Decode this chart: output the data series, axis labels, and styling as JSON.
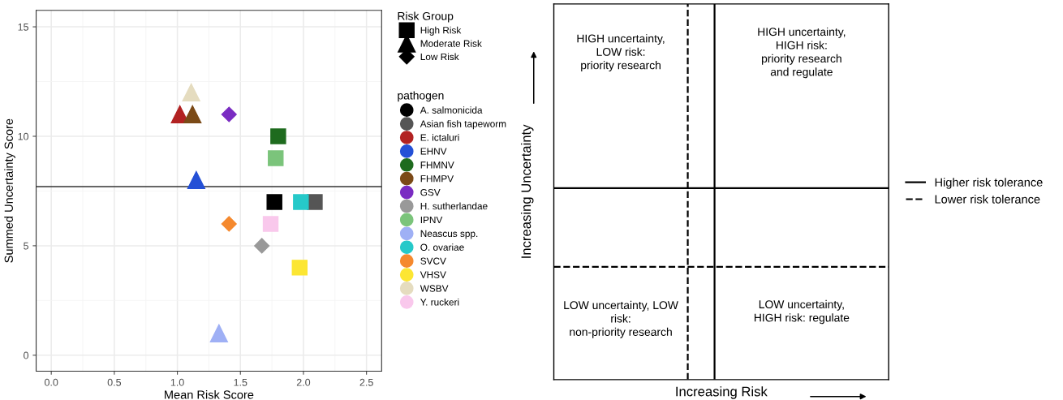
{
  "chart_data": [
    {
      "type": "scatter",
      "xlabel": "Mean Risk Score",
      "ylabel": "Summed Uncertainty Score",
      "xlim": [
        -0.12,
        2.62
      ],
      "ylim": [
        -0.73,
        15.75
      ],
      "xticks": [
        {
          "value": 0,
          "label": "0.0"
        },
        {
          "value": 0.5,
          "label": "0.5"
        },
        {
          "value": 1,
          "label": "1.0"
        },
        {
          "value": 1.5,
          "label": "1.5"
        },
        {
          "value": 2,
          "label": "2.0"
        },
        {
          "value": 2.5,
          "label": "2.5"
        }
      ],
      "yticks": [
        0,
        5,
        10,
        15
      ],
      "grid": true,
      "legend": "right",
      "legend_title": "pathogen",
      "annotations": [
        "Risk Group",
        "High Risk",
        "Moderate Risk",
        "Low Risk"
      ],
      "ref_lines": [
        {
          "axis": "y",
          "value": 7.7,
          "color": "#333333",
          "line_style": "solid"
        }
      ],
      "series": [
        {
          "name": "A. salmonicida",
          "color": "#000000",
          "marker": "square",
          "x": [
            1.77
          ],
          "values": [
            7
          ]
        },
        {
          "name": "Asian fish tapeworm",
          "color": "#555555",
          "marker": "square",
          "x": [
            2.09
          ],
          "values": [
            7
          ]
        },
        {
          "name": "E. ictaluri",
          "color": "#b22222",
          "marker": "triangle",
          "x": [
            1.02
          ],
          "values": [
            11
          ]
        },
        {
          "name": "EHNV",
          "color": "#2450d6",
          "marker": "triangle",
          "x": [
            1.15
          ],
          "values": [
            8
          ]
        },
        {
          "name": "FHMNV",
          "color": "#1e6b1e",
          "marker": "square",
          "x": [
            1.8
          ],
          "values": [
            10
          ]
        },
        {
          "name": "FHMPV",
          "color": "#7b4a17",
          "marker": "triangle",
          "x": [
            1.12
          ],
          "values": [
            11
          ]
        },
        {
          "name": "GSV",
          "color": "#7a2cc2",
          "marker": "diamond",
          "x": [
            1.41
          ],
          "values": [
            11
          ]
        },
        {
          "name": "H. sutherlandae",
          "color": "#999999",
          "marker": "diamond",
          "x": [
            1.67
          ],
          "values": [
            5
          ]
        },
        {
          "name": "IPNV",
          "color": "#7bc47b",
          "marker": "square",
          "x": [
            1.78
          ],
          "values": [
            9
          ]
        },
        {
          "name": "Neascus spp.",
          "color": "#9fb0f5",
          "marker": "triangle",
          "x": [
            1.33
          ],
          "values": [
            1
          ]
        },
        {
          "name": "O. ovariae",
          "color": "#26c9c9",
          "marker": "square",
          "x": [
            1.98
          ],
          "values": [
            7
          ]
        },
        {
          "name": "SVCV",
          "color": "#f5892e",
          "marker": "diamond",
          "x": [
            1.41
          ],
          "values": [
            6
          ]
        },
        {
          "name": "VHSV",
          "color": "#fce633",
          "marker": "square",
          "x": [
            1.97
          ],
          "values": [
            4
          ]
        },
        {
          "name": "WSBV",
          "color": "#e5dcbf",
          "marker": "triangle",
          "x": [
            1.11
          ],
          "values": [
            12
          ]
        },
        {
          "name": "Y. ruckeri",
          "color": "#f9c8ec",
          "marker": "square",
          "x": [
            1.74
          ],
          "values": [
            6
          ]
        }
      ]
    },
    {
      "type": "other",
      "xlabel": "Increasing Risk",
      "ylabel": "Increasing Uncertainty",
      "legend": "right",
      "annotations": [
        "HIGH uncertainty,\nLOW risk:\npriority research",
        "HIGH uncertainty,\nHIGH risk:\npriority research\nand regulate",
        "LOW uncertainty, LOW\nrisk:\nnon-priority research",
        "LOW uncertainty,\nHIGH risk: regulate"
      ],
      "series": [
        {
          "name": "Higher risk tolerance",
          "line_style": "solid"
        },
        {
          "name": "Lower risk tolerance",
          "line_style": "dashed"
        }
      ]
    }
  ]
}
